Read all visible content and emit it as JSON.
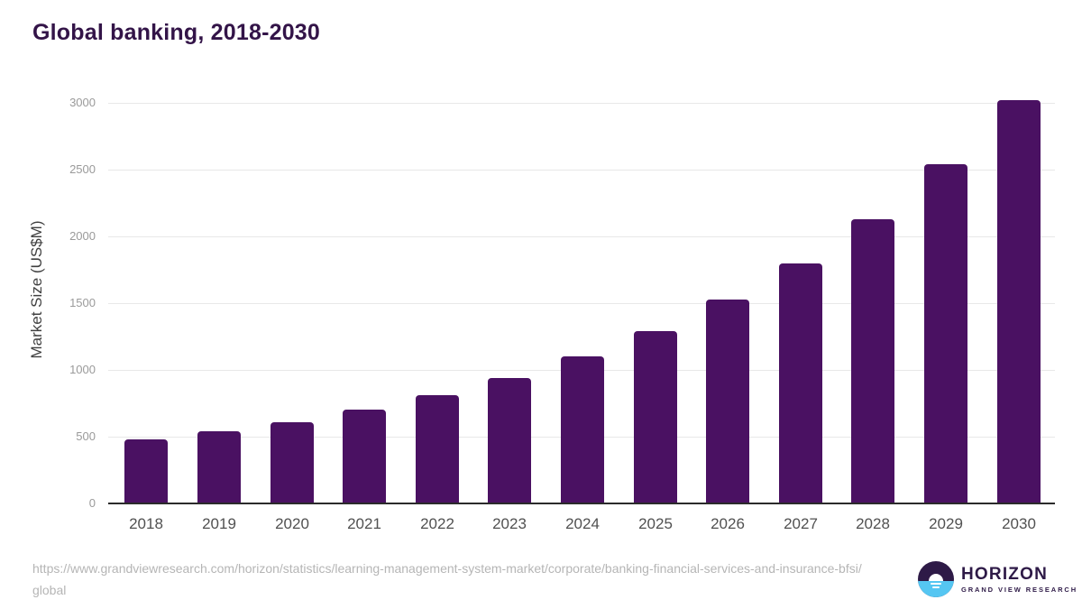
{
  "title": "Global banking, 2018-2030",
  "footer": {
    "source_url": "https://www.grandviewresearch.com/horizon/statistics/learning-management-system-market/corporate/banking-financial-services-and-insurance-bfsi/global"
  },
  "logo": {
    "name": "HORIZON",
    "subtitle": "GRAND VIEW RESEARCH",
    "mark_icon": "sunset-horizon-icon",
    "purple": "#2e1a47",
    "blue": "#55c6f2"
  },
  "colors": {
    "bar": "#4a1162",
    "title_text": "#331448",
    "grid": "#e8e8e8",
    "axis_line": "#2b2b2b",
    "y_tick_label": "#9a9a9a",
    "x_tick_label": "#515151",
    "url_text": "#b5b5b5"
  },
  "chart_data": {
    "type": "bar",
    "title": "Global banking, 2018-2030",
    "categories": [
      "2018",
      "2019",
      "2020",
      "2021",
      "2022",
      "2023",
      "2024",
      "2025",
      "2026",
      "2027",
      "2028",
      "2029",
      "2030"
    ],
    "values": [
      480,
      540,
      610,
      700,
      810,
      940,
      1100,
      1290,
      1530,
      1800,
      2130,
      2540,
      3020
    ],
    "xlabel": "",
    "ylabel": "Market Size (US$M)",
    "ylim": [
      0,
      3100
    ],
    "yticks": [
      0,
      500,
      1000,
      1500,
      2000,
      2500,
      3000
    ],
    "grid": "horizontal-only",
    "legend": "none",
    "bar_color": "#4a1162"
  }
}
